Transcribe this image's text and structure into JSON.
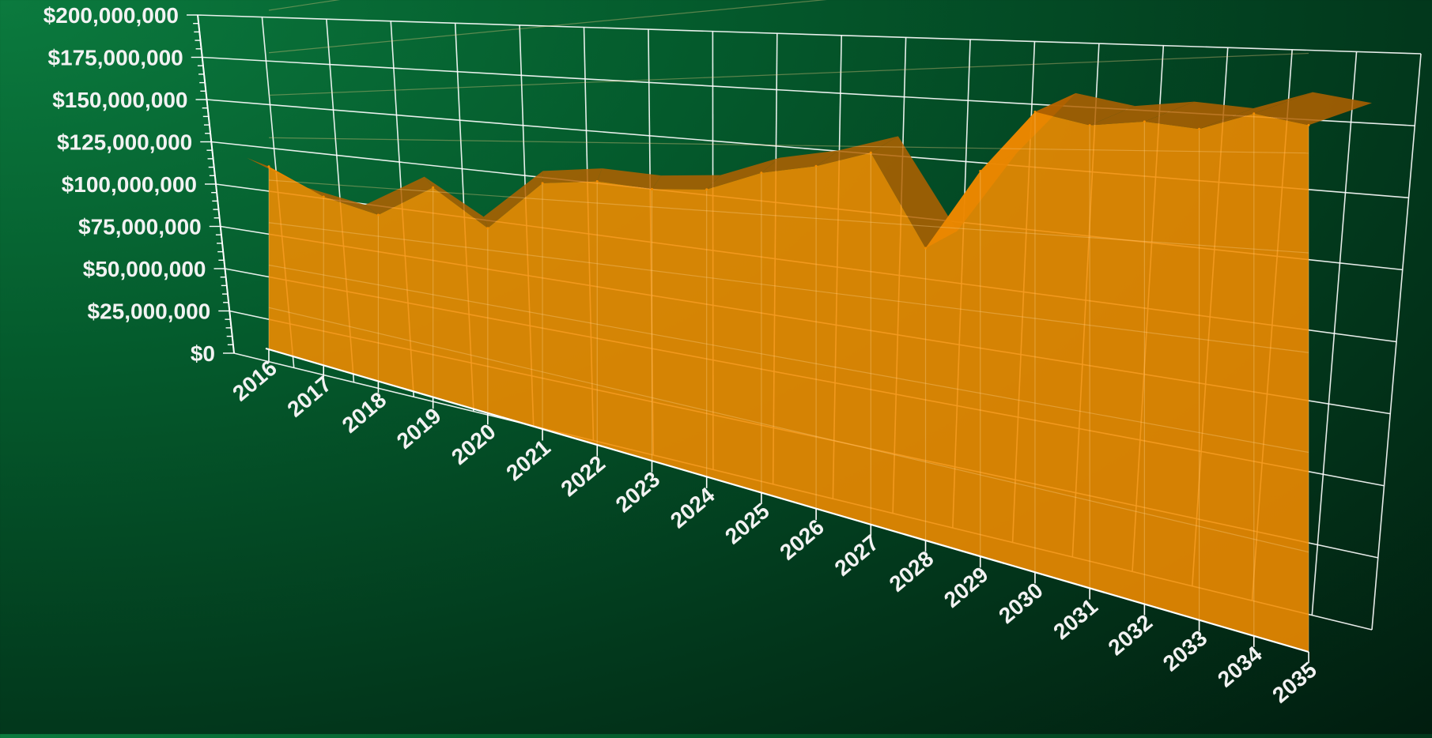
{
  "chart_data": {
    "type": "area",
    "title": "",
    "xlabel": "",
    "ylabel": "",
    "x": [
      "2016",
      "2017",
      "2018",
      "2019",
      "2020",
      "2021",
      "2022",
      "2023",
      "2024",
      "2025",
      "2026",
      "2027",
      "2028",
      "2029",
      "2030",
      "2031",
      "2032",
      "2033",
      "2034",
      "2035"
    ],
    "values": [
      108000000,
      93000000,
      86000000,
      102000000,
      85000000,
      107000000,
      109000000,
      107000000,
      108000000,
      115000000,
      118000000,
      123000000,
      93000000,
      118000000,
      136000000,
      132000000,
      133000000,
      131000000,
      135000000,
      132000000
    ],
    "ylim": [
      0,
      200000000
    ],
    "yticks": [
      0,
      25000000,
      50000000,
      75000000,
      100000000,
      125000000,
      150000000,
      175000000,
      200000000
    ],
    "ytick_labels": [
      "$0",
      "$25,000,000",
      "$50,000,000",
      "$75,000,000",
      "$100,000,000",
      "$125,000,000",
      "$150,000,000",
      "$175,000,000",
      "$200,000,000"
    ],
    "grid": true,
    "legend": "none",
    "colors": {
      "area": "#f28c00",
      "area_dark": "#b36200",
      "grid": "#ffffff",
      "text": "#f2f2f2"
    }
  }
}
